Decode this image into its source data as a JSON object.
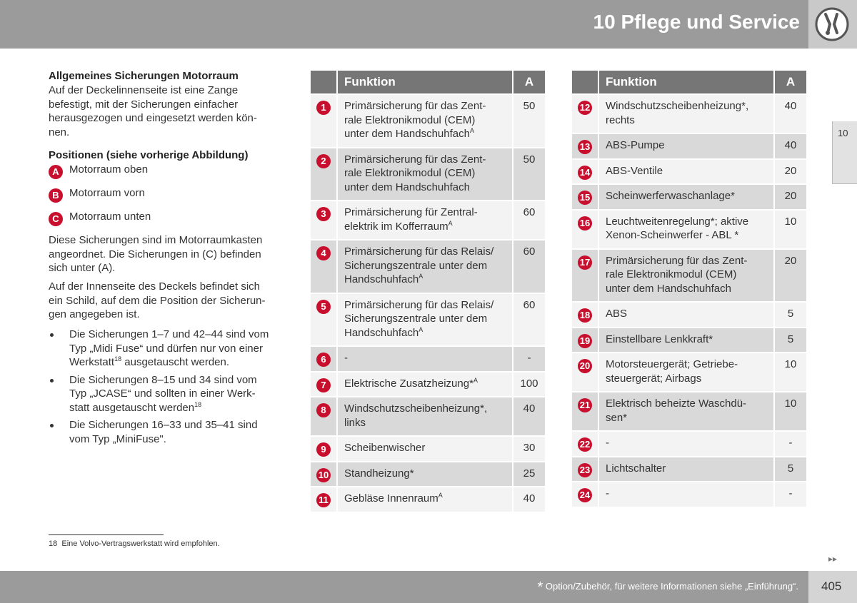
{
  "header": {
    "title": "10 Pflege und Service"
  },
  "side_tab": "10",
  "left": {
    "heading": "Allgemeines Sicherungen Motorraum",
    "para1": [
      "Auf der Deckelinnenseite ist eine Zange",
      "befestigt, mit der Sicherungen einfacher",
      "herausgezogen und eingesetzt werden kön-",
      "nen."
    ],
    "heading2": "Positionen (siehe vorherige Abbildung)",
    "positions": [
      {
        "badge": "A",
        "text": "Motorraum oben"
      },
      {
        "badge": "B",
        "text": "Motorraum vorn"
      },
      {
        "badge": "C",
        "text": "Motorraum unten"
      }
    ],
    "para2": [
      "Diese Sicherungen sind im Motorraumkasten",
      "angeordnet. Die Sicherungen in (C) befinden",
      "sich unter (A)."
    ],
    "para3": [
      "Auf der Innenseite des Deckels befindet sich",
      "ein Schild, auf dem die Position der Sicherun-",
      "gen angegeben ist."
    ],
    "bullets": [
      {
        "lines": [
          "Die Sicherungen 1–7 und 42–44 sind vom",
          "Typ „Midi Fuse“ und dürfen nur von einer",
          {
            "text": "Werkstatt",
            "sup": "18",
            "after": " ausgetauscht werden."
          }
        ]
      },
      {
        "lines": [
          "Die Sicherungen 8–15 und 34 sind vom",
          "Typ „JCASE“ und sollten in einer Werk-",
          {
            "text": "statt ausgetauscht werden",
            "sup": "18"
          }
        ]
      },
      {
        "lines": [
          "Die Sicherungen 16–33 und 35–41 sind",
          "vom Typ „MiniFuse\"."
        ]
      }
    ]
  },
  "tables": [
    {
      "header": [
        "Funktion",
        "A"
      ],
      "rows": [
        {
          "num": 1,
          "lines": [
            "Primärsicherung für das Zent-",
            "rale Elektronikmodul (CEM)",
            {
              "text": "unter dem Handschuhfach",
              "sup": "A"
            }
          ],
          "amp": 50
        },
        {
          "num": 2,
          "lines": [
            "Primärsicherung für das Zent-",
            "rale Elektronikmodul (CEM)",
            "unter dem Handschuhfach"
          ],
          "amp": 50
        },
        {
          "num": 3,
          "lines": [
            "Primärsicherung für Zentral-",
            {
              "text": "elektrik im Kofferraum",
              "sup": "A"
            }
          ],
          "amp": 60
        },
        {
          "num": 4,
          "lines": [
            "Primärsicherung für das Relais/",
            "Sicherungszentrale unter dem",
            {
              "text": "Handschuhfach",
              "sup": "A"
            }
          ],
          "amp": 60
        },
        {
          "num": 5,
          "lines": [
            "Primärsicherung für das Relais/",
            "Sicherungszentrale unter dem",
            {
              "text": "Handschuhfach",
              "sup": "A"
            }
          ],
          "amp": 60
        },
        {
          "num": 6,
          "lines": [
            "-"
          ],
          "amp": "-"
        },
        {
          "num": 7,
          "lines": [
            {
              "text": "Elektrische Zusatzheizung*",
              "sup": "A"
            }
          ],
          "amp": 100
        },
        {
          "num": 8,
          "lines": [
            "Windschutzscheibenheizung*,",
            "links"
          ],
          "amp": 40
        },
        {
          "num": 9,
          "lines": [
            "Scheibenwischer"
          ],
          "amp": 30
        },
        {
          "num": 10,
          "lines": [
            "Standheizung*"
          ],
          "amp": 25
        },
        {
          "num": 11,
          "lines": [
            {
              "text": "Gebläse Innenraum",
              "sup": "A"
            }
          ],
          "amp": 40
        }
      ]
    },
    {
      "header": [
        "Funktion",
        "A"
      ],
      "rows": [
        {
          "num": 12,
          "lines": [
            "Windschutzscheibenheizung*,",
            "rechts"
          ],
          "amp": 40
        },
        {
          "num": 13,
          "lines": [
            "ABS-Pumpe"
          ],
          "amp": 40
        },
        {
          "num": 14,
          "lines": [
            "ABS-Ventile"
          ],
          "amp": 20
        },
        {
          "num": 15,
          "lines": [
            "Scheinwerferwaschanlage*"
          ],
          "amp": 20
        },
        {
          "num": 16,
          "lines": [
            "Leuchtweitenregelung*; aktive",
            "Xenon-Scheinwerfer - ABL *"
          ],
          "amp": 10
        },
        {
          "num": 17,
          "lines": [
            "Primärsicherung für das Zent-",
            "rale Elektronikmodul (CEM)",
            "unter dem Handschuhfach"
          ],
          "amp": 20
        },
        {
          "num": 18,
          "lines": [
            "ABS"
          ],
          "amp": 5
        },
        {
          "num": 19,
          "lines": [
            "Einstellbare Lenkkraft*"
          ],
          "amp": 5
        },
        {
          "num": 20,
          "lines": [
            "Motorsteuergerät; Getriebe-",
            "steuergerät; Airbags"
          ],
          "amp": 10
        },
        {
          "num": 21,
          "lines": [
            "Elektrisch beheizte Waschdü-",
            "sen*"
          ],
          "amp": 10
        },
        {
          "num": 22,
          "lines": [
            "-"
          ],
          "amp": "-"
        },
        {
          "num": 23,
          "lines": [
            "Lichtschalter"
          ],
          "amp": 5
        },
        {
          "num": 24,
          "lines": [
            "-"
          ],
          "amp": "-"
        }
      ]
    }
  ],
  "footnote": {
    "num": "18",
    "text": "Eine Volvo-Vertragswerkstatt wird empfohlen."
  },
  "footer": {
    "star": "*",
    "text": "Option/Zubehör, für weitere Informationen siehe „Einführung“.",
    "page": "405"
  }
}
